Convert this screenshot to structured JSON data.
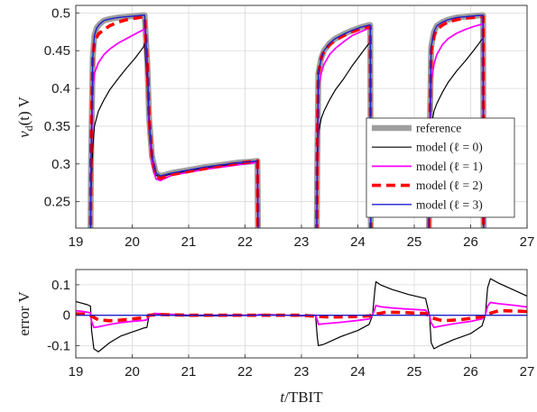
{
  "colors": {
    "reference": "#9e9e9e",
    "model_l0": "#000000",
    "model_l1": "#ff00ff",
    "model_l2": "#ff0000",
    "model_l3": "#1f1fcc"
  },
  "chart_data": [
    {
      "type": "line",
      "ylabel_math": "v",
      "ylabel_sub": "d",
      "ylabel_rest": "(t) V",
      "xlim": [
        19,
        27
      ],
      "ylim": [
        0.215,
        0.51
      ],
      "xticks": [
        "19",
        "20",
        "21",
        "22",
        "23",
        "24",
        "25",
        "26",
        "27"
      ],
      "yticks": [
        "0.25",
        "0.3",
        "0.35",
        "0.4",
        "0.45",
        "0.5"
      ],
      "ytick_values": [
        0.25,
        0.3,
        0.35,
        0.4,
        0.45,
        0.5
      ],
      "grid": true,
      "legend_position": "lower-right",
      "legend": [
        {
          "text": "reference"
        },
        {
          "text": "model (ℓ = 0)"
        },
        {
          "text": "model (ℓ = 1)"
        },
        {
          "text": "model (ℓ = 2)"
        },
        {
          "text": "model (ℓ = 3)"
        }
      ],
      "series": [
        {
          "name": "reference",
          "x": [
            19.26,
            19.27,
            19.3,
            19.33,
            19.37,
            19.42,
            19.5,
            19.6,
            19.75,
            19.9,
            20.05,
            20.2,
            20.22,
            20.27,
            20.3,
            20.35,
            20.42,
            20.5,
            20.7,
            21.0,
            21.3,
            21.6,
            21.9,
            22.1,
            22.22,
            22.23,
            23.27,
            23.28,
            23.3,
            23.35,
            23.4,
            23.5,
            23.6,
            23.75,
            23.9,
            24.05,
            24.2,
            24.22,
            24.23,
            25.26,
            25.27,
            25.3,
            25.35,
            25.4,
            25.5,
            25.6,
            25.75,
            25.9,
            26.05,
            26.2,
            26.22,
            26.23
          ],
          "y": [
            0.2,
            0.3,
            0.44,
            0.47,
            0.48,
            0.485,
            0.49,
            0.492,
            0.494,
            0.495,
            0.496,
            0.497,
            0.497,
            0.43,
            0.36,
            0.31,
            0.288,
            0.284,
            0.288,
            0.292,
            0.296,
            0.299,
            0.302,
            0.303,
            0.304,
            0.2,
            0.2,
            0.3,
            0.42,
            0.44,
            0.45,
            0.46,
            0.466,
            0.472,
            0.477,
            0.481,
            0.484,
            0.484,
            0.2,
            0.2,
            0.32,
            0.455,
            0.475,
            0.483,
            0.488,
            0.491,
            0.494,
            0.495,
            0.496,
            0.497,
            0.497,
            0.2
          ]
        },
        {
          "name": "model (ℓ = 0)",
          "x": [
            19.26,
            19.27,
            19.3,
            19.33,
            19.4,
            19.5,
            19.6,
            19.75,
            19.9,
            20.05,
            20.2,
            20.22,
            20.27,
            20.3,
            20.35,
            20.42,
            20.5,
            20.7,
            21.0,
            21.3,
            21.6,
            21.9,
            22.1,
            22.22,
            22.23,
            23.27,
            23.28,
            23.3,
            23.35,
            23.4,
            23.5,
            23.6,
            23.75,
            23.9,
            24.05,
            24.2,
            24.22,
            24.23,
            25.26,
            25.27,
            25.3,
            25.35,
            25.4,
            25.5,
            25.6,
            25.75,
            25.9,
            26.05,
            26.2,
            26.22,
            26.23
          ],
          "y": [
            0.2,
            0.26,
            0.32,
            0.35,
            0.37,
            0.385,
            0.398,
            0.413,
            0.427,
            0.44,
            0.455,
            0.46,
            0.4,
            0.34,
            0.3,
            0.285,
            0.283,
            0.287,
            0.291,
            0.295,
            0.298,
            0.3,
            0.302,
            0.303,
            0.2,
            0.2,
            0.28,
            0.34,
            0.36,
            0.37,
            0.385,
            0.398,
            0.413,
            0.43,
            0.445,
            0.46,
            0.462,
            0.2,
            0.2,
            0.27,
            0.35,
            0.37,
            0.38,
            0.395,
            0.408,
            0.423,
            0.436,
            0.45,
            0.465,
            0.467,
            0.2
          ]
        },
        {
          "name": "model (ℓ = 1)",
          "x": [
            19.26,
            19.27,
            19.3,
            19.33,
            19.4,
            19.5,
            19.6,
            19.75,
            19.9,
            20.05,
            20.2,
            20.22,
            20.27,
            20.3,
            20.35,
            20.42,
            20.5,
            20.7,
            21.0,
            21.3,
            21.6,
            21.9,
            22.1,
            22.22,
            22.23,
            23.27,
            23.28,
            23.3,
            23.35,
            23.4,
            23.5,
            23.6,
            23.75,
            23.9,
            24.05,
            24.2,
            24.22,
            24.23,
            25.26,
            25.27,
            25.3,
            25.35,
            25.4,
            25.5,
            25.6,
            25.75,
            25.9,
            26.05,
            26.2,
            26.22,
            26.23
          ],
          "y": [
            0.2,
            0.3,
            0.4,
            0.42,
            0.434,
            0.445,
            0.452,
            0.46,
            0.466,
            0.472,
            0.478,
            0.48,
            0.42,
            0.35,
            0.3,
            0.28,
            0.278,
            0.285,
            0.289,
            0.293,
            0.296,
            0.299,
            0.301,
            0.302,
            0.2,
            0.2,
            0.3,
            0.4,
            0.42,
            0.432,
            0.445,
            0.453,
            0.462,
            0.47,
            0.475,
            0.48,
            0.481,
            0.2,
            0.2,
            0.3,
            0.41,
            0.432,
            0.445,
            0.458,
            0.466,
            0.473,
            0.478,
            0.482,
            0.485,
            0.486,
            0.2
          ]
        },
        {
          "name": "model (ℓ = 2)",
          "x": [
            19.26,
            19.27,
            19.3,
            19.33,
            19.4,
            19.5,
            19.6,
            19.75,
            19.9,
            20.05,
            20.2,
            20.22,
            20.27,
            20.3,
            20.35,
            20.42,
            20.5,
            20.7,
            21.0,
            21.3,
            21.6,
            21.9,
            22.1,
            22.22,
            22.23,
            23.27,
            23.28,
            23.3,
            23.35,
            23.4,
            23.5,
            23.6,
            23.75,
            23.9,
            24.05,
            24.2,
            24.22,
            24.23,
            25.26,
            25.27,
            25.3,
            25.35,
            25.4,
            25.5,
            25.6,
            25.75,
            25.9,
            26.05,
            26.2,
            26.22,
            26.23
          ],
          "y": [
            0.2,
            0.32,
            0.44,
            0.462,
            0.472,
            0.478,
            0.483,
            0.488,
            0.491,
            0.493,
            0.495,
            0.495,
            0.43,
            0.36,
            0.31,
            0.284,
            0.281,
            0.286,
            0.29,
            0.294,
            0.298,
            0.301,
            0.303,
            0.304,
            0.2,
            0.2,
            0.32,
            0.42,
            0.44,
            0.45,
            0.458,
            0.464,
            0.47,
            0.475,
            0.479,
            0.482,
            0.482,
            0.2,
            0.2,
            0.32,
            0.45,
            0.47,
            0.478,
            0.484,
            0.488,
            0.491,
            0.493,
            0.494,
            0.495,
            0.495,
            0.2
          ]
        },
        {
          "name": "model (ℓ = 3)",
          "x": [
            19.26,
            19.27,
            19.3,
            19.33,
            19.37,
            19.42,
            19.5,
            19.6,
            19.75,
            19.9,
            20.05,
            20.2,
            20.22,
            20.27,
            20.3,
            20.35,
            20.42,
            20.5,
            20.7,
            21.0,
            21.3,
            21.6,
            21.9,
            22.1,
            22.22,
            22.23,
            23.27,
            23.28,
            23.3,
            23.35,
            23.4,
            23.5,
            23.6,
            23.75,
            23.9,
            24.05,
            24.2,
            24.22,
            24.23,
            25.26,
            25.27,
            25.3,
            25.35,
            25.4,
            25.5,
            25.6,
            25.75,
            25.9,
            26.05,
            26.2,
            26.22,
            26.23
          ],
          "y": [
            0.2,
            0.3,
            0.44,
            0.47,
            0.48,
            0.485,
            0.49,
            0.492,
            0.494,
            0.495,
            0.496,
            0.497,
            0.497,
            0.43,
            0.36,
            0.31,
            0.288,
            0.284,
            0.288,
            0.292,
            0.296,
            0.299,
            0.302,
            0.303,
            0.304,
            0.2,
            0.2,
            0.3,
            0.42,
            0.44,
            0.45,
            0.46,
            0.466,
            0.472,
            0.477,
            0.481,
            0.484,
            0.484,
            0.2,
            0.2,
            0.32,
            0.455,
            0.475,
            0.483,
            0.488,
            0.491,
            0.494,
            0.495,
            0.496,
            0.497,
            0.497,
            0.2
          ]
        }
      ]
    },
    {
      "type": "line",
      "ylabel": "error V",
      "xlabel_math": "t",
      "xlabel_rest": "/TBIT",
      "xlim": [
        19,
        27
      ],
      "ylim": [
        -0.14,
        0.15
      ],
      "xticks": [
        "19",
        "20",
        "21",
        "22",
        "23",
        "24",
        "25",
        "26",
        "27"
      ],
      "yticks": [
        "0.1",
        "0",
        "-0.1"
      ],
      "ytick_values": [
        0.1,
        0,
        -0.1
      ],
      "grid": true,
      "series": [
        {
          "name": "model (ℓ = 0)",
          "x": [
            19.0,
            19.1,
            19.2,
            19.26,
            19.28,
            19.32,
            19.4,
            19.6,
            19.8,
            20.0,
            20.2,
            20.26,
            20.3,
            20.4,
            20.6,
            21.0,
            21.5,
            22.0,
            22.2,
            22.25,
            22.5,
            23.0,
            23.25,
            23.28,
            23.3,
            23.4,
            23.7,
            24.0,
            24.2,
            24.26,
            24.3,
            24.32,
            24.4,
            24.6,
            24.9,
            25.2,
            25.27,
            25.3,
            25.35,
            25.45,
            25.7,
            26.0,
            26.2,
            26.26,
            26.3,
            26.35,
            26.5,
            26.8,
            27.0
          ],
          "y": [
            0.045,
            0.04,
            0.035,
            0.03,
            -0.05,
            -0.11,
            -0.12,
            -0.09,
            -0.068,
            -0.055,
            -0.042,
            -0.04,
            0.0,
            0.005,
            0.0,
            -0.002,
            -0.002,
            -0.001,
            0.0,
            0.003,
            0.002,
            -0.003,
            0.0,
            -0.07,
            -0.1,
            -0.095,
            -0.07,
            -0.05,
            -0.03,
            0.0,
            0.08,
            0.11,
            0.1,
            0.085,
            0.068,
            0.055,
            0.0,
            -0.09,
            -0.11,
            -0.1,
            -0.08,
            -0.06,
            -0.035,
            0.0,
            0.09,
            0.12,
            0.105,
            0.08,
            0.063
          ]
        },
        {
          "name": "model (ℓ = 1)",
          "x": [
            19.0,
            19.1,
            19.2,
            19.26,
            19.28,
            19.32,
            19.4,
            19.6,
            19.8,
            20.0,
            20.2,
            20.26,
            20.3,
            20.4,
            20.6,
            21.0,
            21.5,
            22.0,
            22.2,
            22.25,
            22.5,
            23.0,
            23.25,
            23.28,
            23.3,
            23.4,
            23.7,
            24.0,
            24.2,
            24.26,
            24.3,
            24.32,
            24.4,
            24.6,
            24.9,
            25.2,
            25.27,
            25.3,
            25.35,
            25.45,
            25.7,
            26.0,
            26.2,
            26.26,
            26.3,
            26.35,
            26.5,
            26.8,
            27.0
          ],
          "y": [
            0.015,
            0.013,
            0.01,
            0.008,
            -0.02,
            -0.04,
            -0.038,
            -0.03,
            -0.024,
            -0.02,
            -0.017,
            -0.015,
            0.0,
            0.006,
            0.004,
            0.0,
            0.0,
            0.0,
            0.0,
            0.002,
            0.001,
            -0.001,
            0.0,
            -0.015,
            -0.03,
            -0.028,
            -0.023,
            -0.017,
            -0.012,
            0.0,
            0.02,
            0.032,
            0.028,
            0.024,
            0.02,
            0.017,
            0.0,
            -0.025,
            -0.04,
            -0.036,
            -0.028,
            -0.02,
            -0.012,
            0.0,
            0.03,
            0.042,
            0.038,
            0.032,
            0.027
          ]
        },
        {
          "name": "model (ℓ = 2)",
          "x": [
            19.0,
            19.2,
            19.3,
            19.4,
            19.6,
            19.8,
            20.0,
            20.2,
            20.3,
            20.5,
            21.0,
            21.5,
            22.0,
            22.3,
            23.0,
            23.3,
            23.5,
            23.8,
            24.0,
            24.2,
            24.3,
            24.5,
            24.8,
            25.2,
            25.3,
            25.5,
            25.8,
            26.0,
            26.2,
            26.3,
            26.5,
            26.8,
            27.0
          ],
          "y": [
            0.005,
            0.003,
            -0.005,
            -0.015,
            -0.018,
            -0.016,
            -0.012,
            -0.008,
            0.0,
            0.002,
            0.0,
            0.0,
            0.0,
            0.0,
            0.0,
            -0.004,
            -0.006,
            -0.005,
            -0.004,
            -0.002,
            0.003,
            0.01,
            0.009,
            0.006,
            -0.008,
            -0.018,
            -0.015,
            -0.01,
            -0.005,
            0.004,
            0.015,
            0.014,
            0.012
          ]
        },
        {
          "name": "model (ℓ = 3)",
          "x": [
            19.0,
            20.0,
            21.0,
            22.0,
            23.0,
            24.0,
            25.0,
            26.0,
            27.0
          ],
          "y": [
            0.0,
            0.0,
            0.0,
            0.0,
            0.0,
            0.0,
            0.0,
            0.0,
            0.0
          ]
        }
      ]
    }
  ]
}
